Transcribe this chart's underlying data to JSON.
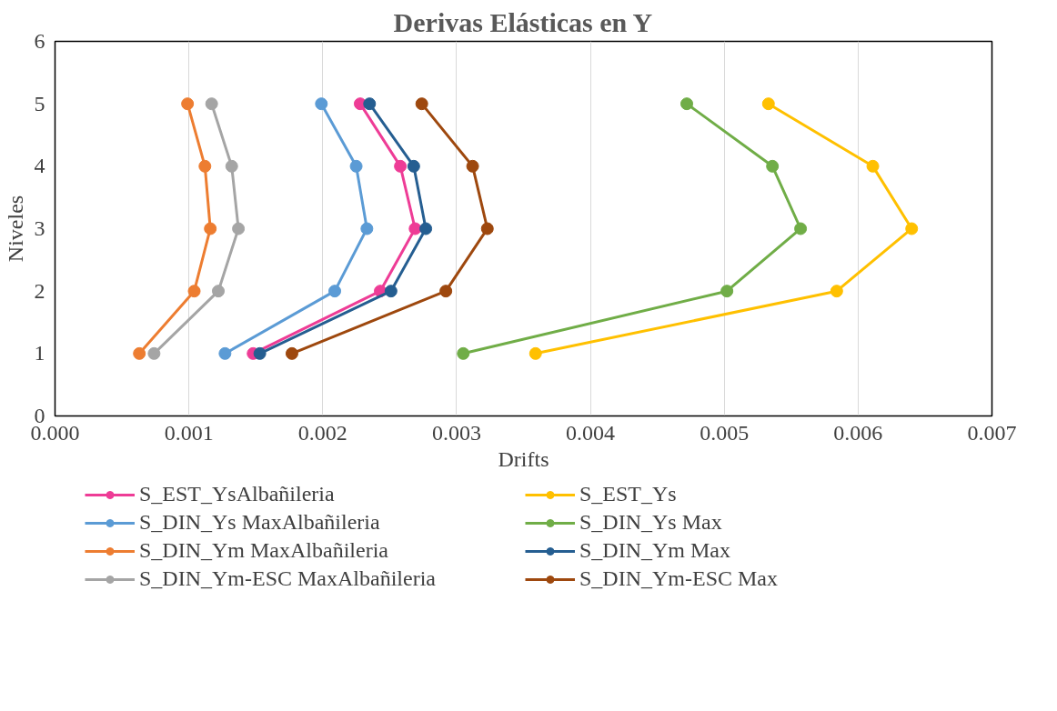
{
  "chart_data": {
    "type": "line",
    "title": "Derivas Elásticas en Y",
    "xlabel": "Drifts",
    "ylabel": "Niveles",
    "xlim": [
      0,
      0.007
    ],
    "xticks": [
      {
        "value": 0,
        "label": "0.000"
      },
      {
        "value": 0.001,
        "label": "0.001"
      },
      {
        "value": 0.002,
        "label": "0.002"
      },
      {
        "value": 0.003,
        "label": "0.003"
      },
      {
        "value": 0.004,
        "label": "0.004"
      },
      {
        "value": 0.005,
        "label": "0.005"
      },
      {
        "value": 0.006,
        "label": "0.006"
      },
      {
        "value": 0.007,
        "label": "0.007"
      }
    ],
    "ylim": [
      0,
      6
    ],
    "yticks": [
      0,
      1,
      2,
      3,
      4,
      5,
      6
    ],
    "grid": "x",
    "legend": "bottom",
    "marker": "circle",
    "line_style": "solid",
    "series": [
      {
        "name": "S_EST_YsAlbañileria",
        "color": "#ee3c96",
        "x": [
          0.00148,
          0.00243,
          0.00269,
          0.00258,
          0.00228
        ],
        "values": [
          1,
          2,
          3,
          4,
          5
        ]
      },
      {
        "name": "S_DIN_Ys MaxAlbañileria",
        "color": "#5b9bd5",
        "x": [
          0.00127,
          0.00209,
          0.00233,
          0.00225,
          0.00199
        ],
        "values": [
          1,
          2,
          3,
          4,
          5
        ]
      },
      {
        "name": "S_DIN_Ym MaxAlbañileria",
        "color": "#ed7d31",
        "x": [
          0.00063,
          0.00104,
          0.00116,
          0.00112,
          0.00099
        ],
        "values": [
          1,
          2,
          3,
          4,
          5
        ]
      },
      {
        "name": "S_DIN_Ym-ESC MaxAlbañileria",
        "color": "#a5a5a5",
        "x": [
          0.00074,
          0.00122,
          0.00137,
          0.00132,
          0.00117
        ],
        "values": [
          1,
          2,
          3,
          4,
          5
        ]
      },
      {
        "name": "S_EST_Ys",
        "color": "#ffc000",
        "x": [
          0.00359,
          0.00584,
          0.0064,
          0.00611,
          0.00533
        ],
        "values": [
          1,
          2,
          3,
          4,
          5
        ]
      },
      {
        "name": "S_DIN_Ys Max",
        "color": "#70ad47",
        "x": [
          0.00305,
          0.00502,
          0.00557,
          0.00536,
          0.00472
        ],
        "values": [
          1,
          2,
          3,
          4,
          5
        ]
      },
      {
        "name": "S_DIN_Ym Max",
        "color": "#255e91",
        "x": [
          0.00153,
          0.00251,
          0.00277,
          0.00268,
          0.00235
        ],
        "values": [
          1,
          2,
          3,
          4,
          5
        ]
      },
      {
        "name": "S_DIN_Ym-ESC Max",
        "color": "#9e480e",
        "x": [
          0.00177,
          0.00292,
          0.00323,
          0.00312,
          0.00274
        ],
        "values": [
          1,
          2,
          3,
          4,
          5
        ]
      }
    ]
  }
}
